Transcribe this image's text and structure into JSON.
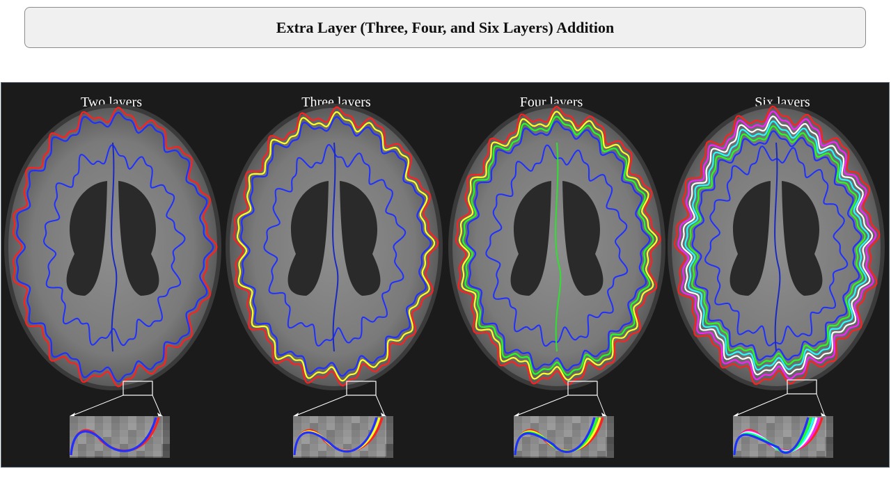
{
  "header": {
    "title": "Extra Layer (Three, Four, and Six Layers) Addition"
  },
  "figure": {
    "panels": [
      {
        "label": "Two layers",
        "colors": [
          "#ff2020",
          "#2030ff"
        ],
        "midline": "#1a2ac0"
      },
      {
        "label": "Three layers",
        "colors": [
          "#ff2020",
          "#ffff20",
          "#2030ff"
        ],
        "midline": "#1a2ac0"
      },
      {
        "label": "Four layers",
        "colors": [
          "#ff2020",
          "#ffff20",
          "#20ff20",
          "#2030ff"
        ],
        "midline": "#30e030"
      },
      {
        "label": "Six layers",
        "colors": [
          "#ff2020",
          "#ff20ff",
          "#ffffff",
          "#20ffff",
          "#20ff20",
          "#2030ff"
        ],
        "midline": "#1a2ac0"
      }
    ]
  }
}
